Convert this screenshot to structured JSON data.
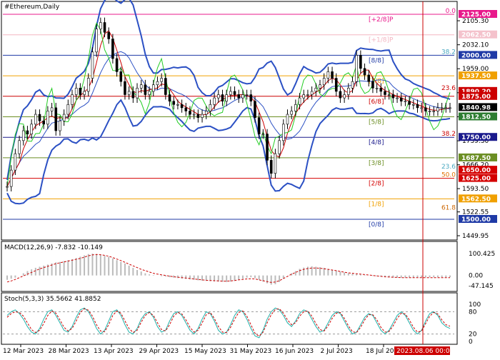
{
  "chart_data": {
    "type": "line",
    "title": "#Ethereum,Daily",
    "price_axis": {
      "min": 1449.95,
      "max": 2125.0,
      "ticks": [
        "2105.30",
        "2032.10",
        "1959.00",
        "1885.90",
        "1812.50",
        "1739.30",
        "1666.20",
        "1593.50",
        "1522.55",
        "1449.95"
      ]
    },
    "price_tags": [
      {
        "label": "2125.00",
        "value": 2125.0,
        "color": "#e8198b",
        "text_color": "#ffffff"
      },
      {
        "label": "2062.50",
        "value": 2062.5,
        "color": "#f4c2cc",
        "text_color": "#ffffff"
      },
      {
        "label": "2000.00",
        "value": 2000.0,
        "color": "#1f3aa6",
        "text_color": "#ffffff"
      },
      {
        "label": "1937.50",
        "value": 1937.5,
        "color": "#f0a000",
        "text_color": "#ffffff"
      },
      {
        "label": "1890.20",
        "value": 1890.2,
        "color": "#cc0000",
        "text_color": "#ffffff"
      },
      {
        "label": "1875.00",
        "value": 1875.0,
        "color": "#cc0000",
        "text_color": "#ffffff"
      },
      {
        "label": "1840.98",
        "value": 1840.98,
        "color": "#000000",
        "text_color": "#ffffff"
      },
      {
        "label": "1812.50",
        "value": 1812.5,
        "color": "#2e7d32",
        "text_color": "#ffffff"
      },
      {
        "label": "1750.00",
        "value": 1750.0,
        "color": "#1a1a8c",
        "text_color": "#ffffff"
      },
      {
        "label": "1687.50",
        "value": 1687.5,
        "color": "#6b8e23",
        "text_color": "#ffffff"
      },
      {
        "label": "1650.00",
        "value": 1650.0,
        "color": "#d40000",
        "text_color": "#ffffff"
      },
      {
        "label": "1625.00",
        "value": 1625.0,
        "color": "#d40000",
        "text_color": "#ffffff"
      },
      {
        "label": "1562.50",
        "value": 1562.5,
        "color": "#f0a000",
        "text_color": "#ffffff"
      },
      {
        "label": "1500.00",
        "value": 1500.0,
        "color": "#1f3aa6",
        "text_color": "#ffffff"
      }
    ],
    "murrey_levels": [
      {
        "label": "[+2/8]P",
        "value": 2125.0,
        "color": "#e8198b"
      },
      {
        "label": "[+1/8]P",
        "value": 2062.5,
        "color": "#f4b6c2"
      },
      {
        "label": "[8/8]",
        "value": 2000.0,
        "color": "#1f3aa6"
      },
      {
        "label": "[7/8]",
        "value": 1937.5,
        "color": "#f0a000"
      },
      {
        "label": "[6/8]",
        "value": 1875.0,
        "color": "#cc0000"
      },
      {
        "label": "[5/8]",
        "value": 1812.5,
        "color": "#6b8e23"
      },
      {
        "label": "[4/8]",
        "value": 1750.0,
        "color": "#1a1a8c"
      },
      {
        "label": "[3/8]",
        "value": 1687.5,
        "color": "#6b8e23"
      },
      {
        "label": "[2/8]",
        "value": 1625.0,
        "color": "#d40000"
      },
      {
        "label": "[1/8]",
        "value": 1562.5,
        "color": "#f0a000"
      },
      {
        "label": "[0/8]",
        "value": 1500.0,
        "color": "#1f3aa6"
      }
    ],
    "fib_levels": [
      {
        "label": "0.0",
        "value": 2125.0,
        "color": "#e8198b"
      },
      {
        "label": "38.2",
        "value": 2000.0,
        "color": "#4aa8c0"
      },
      {
        "label": "23.6",
        "value": 1890.2,
        "color": "#cc0000"
      },
      {
        "label": "38.2",
        "value": 1750.0,
        "color": "#cc0000"
      },
      {
        "label": "23.6",
        "value": 1650.0,
        "color": "#4aa8c0"
      },
      {
        "label": "50.0",
        "value": 1625.0,
        "color": "#e07000"
      },
      {
        "label": "61.8",
        "value": 1525.0,
        "color": "#cc6600"
      }
    ],
    "x_labels": [
      "12 Mar 2023",
      "28 Mar 2023",
      "13 Apr 2023",
      "29 Apr 2023",
      "15 May 2023",
      "31 May 2023",
      "16 Jun 2023",
      "2 Jul 2023",
      "18 Jul 20"
    ],
    "current_date_label": "2023.08.06 00:00",
    "price": [
      1600,
      1650,
      1700,
      1740,
      1770,
      1760,
      1790,
      1820,
      1800,
      1790,
      1830,
      1840,
      1770,
      1800,
      1820,
      1850,
      1880,
      1900,
      1880,
      1890,
      1930,
      2010,
      2080,
      2100,
      2070,
      2050,
      1990,
      1950,
      1920,
      1880,
      1890,
      1870,
      1900,
      1910,
      1880,
      1890,
      1910,
      1920,
      1930,
      1880,
      1860,
      1850,
      1850,
      1840,
      1830,
      1820,
      1820,
      1810,
      1820,
      1830,
      1850,
      1870,
      1880,
      1860,
      1880,
      1890,
      1880,
      1870,
      1880,
      1880,
      1860,
      1810,
      1760,
      1760,
      1680,
      1640,
      1700,
      1740,
      1790,
      1820,
      1830,
      1850,
      1870,
      1880,
      1880,
      1890,
      1900,
      1910,
      1930,
      1950,
      1930,
      1890,
      1870,
      1880,
      1900,
      1920,
      2000,
      1960,
      1940,
      1920,
      1900,
      1900,
      1890,
      1880,
      1880,
      1870,
      1870,
      1860,
      1860,
      1850,
      1850,
      1840,
      1840,
      1830,
      1830,
      1830,
      1840,
      1840,
      1840,
      1840
    ],
    "macd": {
      "label": "MACD(12,26,9) -7.832 -10.149",
      "ticks": [
        "100.425",
        "0.00",
        "-47.145"
      ],
      "min": -60,
      "max": 110,
      "hist": [
        -20,
        -15,
        -10,
        0,
        10,
        20,
        28,
        35,
        40,
        45,
        50,
        55,
        60,
        62,
        66,
        70,
        74,
        80,
        86,
        92,
        98,
        100,
        98,
        95,
        90,
        85,
        78,
        70,
        62,
        55,
        45,
        35,
        25,
        18,
        10,
        5,
        2,
        0,
        -3,
        -5,
        -8,
        -10,
        -12,
        -14,
        -16,
        -18,
        -20,
        -22,
        -24,
        -25,
        -26,
        -27,
        -28,
        -29,
        -30,
        -28,
        -25,
        -20,
        -15,
        -10,
        -8,
        -12,
        -20,
        -28,
        -36,
        -42,
        -40,
        -30,
        -15,
        0,
        10,
        20,
        30,
        36,
        40,
        42,
        40,
        38,
        35,
        30,
        26,
        22,
        18,
        14,
        10,
        8,
        6,
        4,
        2,
        0,
        -2,
        -4,
        -6,
        -8,
        -9,
        -10,
        -10,
        -10,
        -10,
        -9,
        -9,
        -8,
        -8,
        -8,
        -8,
        -8,
        -8,
        -8,
        -8,
        -8
      ],
      "signal": [
        -30,
        -25,
        -18,
        -10,
        -2,
        6,
        14,
        22,
        30,
        36,
        42,
        48,
        54,
        58,
        62,
        66,
        70,
        74,
        78,
        84,
        90,
        94,
        96,
        95,
        92,
        88,
        82,
        75,
        68,
        60,
        52,
        44,
        36,
        28,
        22,
        16,
        10,
        6,
        3,
        0,
        -3,
        -6,
        -8,
        -10,
        -12,
        -14,
        -16,
        -18,
        -20,
        -22,
        -23,
        -24,
        -25,
        -26,
        -26,
        -25,
        -23,
        -20,
        -18,
        -16,
        -15,
        -16,
        -20,
        -24,
        -28,
        -32,
        -30,
        -24,
        -14,
        -4,
        6,
        14,
        22,
        28,
        32,
        34,
        34,
        33,
        31,
        28,
        25,
        22,
        18,
        15,
        12,
        10,
        8,
        6,
        4,
        2,
        0,
        -2,
        -4,
        -6,
        -7,
        -8,
        -9,
        -10,
        -10,
        -10,
        -10,
        -10,
        -10,
        -10,
        -10,
        -10,
        -10,
        -10,
        -10,
        -10
      ]
    },
    "stoch": {
      "label": "Stoch(5,3,3) 35.5662 41.8852",
      "ticks": [
        "100",
        "80",
        "20",
        "0"
      ],
      "k": [
        70,
        80,
        85,
        75,
        60,
        40,
        25,
        20,
        35,
        60,
        80,
        85,
        70,
        50,
        30,
        25,
        40,
        65,
        85,
        90,
        80,
        60,
        35,
        20,
        30,
        55,
        80,
        85,
        70,
        45,
        25,
        20,
        35,
        60,
        75,
        80,
        65,
        40,
        25,
        30,
        55,
        75,
        80,
        70,
        50,
        30,
        20,
        35,
        60,
        80,
        75,
        55,
        30,
        20,
        25,
        45,
        70,
        85,
        80,
        60,
        35,
        15,
        10,
        30,
        60,
        80,
        90,
        85,
        70,
        50,
        40,
        55,
        75,
        85,
        80,
        60,
        40,
        25,
        30,
        50,
        70,
        80,
        75,
        55,
        35,
        20,
        25,
        45,
        65,
        75,
        70,
        50,
        30,
        20,
        30,
        50,
        70,
        80,
        70,
        50,
        30,
        20,
        30,
        55,
        75,
        80,
        70,
        50,
        40,
        35
      ],
      "d": [
        65,
        75,
        80,
        78,
        68,
        50,
        32,
        24,
        30,
        48,
        70,
        82,
        76,
        58,
        38,
        28,
        35,
        55,
        78,
        88,
        84,
        68,
        45,
        28,
        26,
        45,
        70,
        82,
        76,
        55,
        35,
        24,
        30,
        52,
        70,
        78,
        70,
        50,
        32,
        28,
        45,
        68,
        78,
        74,
        58,
        38,
        25,
        30,
        50,
        72,
        78,
        62,
        40,
        25,
        24,
        38,
        60,
        78,
        82,
        68,
        45,
        22,
        14,
        25,
        50,
        72,
        86,
        88,
        76,
        58,
        45,
        50,
        68,
        80,
        82,
        68,
        48,
        32,
        28,
        42,
        62,
        76,
        78,
        62,
        42,
        26,
        24,
        38,
        58,
        72,
        72,
        58,
        38,
        25,
        27,
        42,
        62,
        76,
        74,
        58,
        38,
        25,
        28,
        48,
        68,
        78,
        74,
        58,
        45,
        41
      ]
    }
  }
}
